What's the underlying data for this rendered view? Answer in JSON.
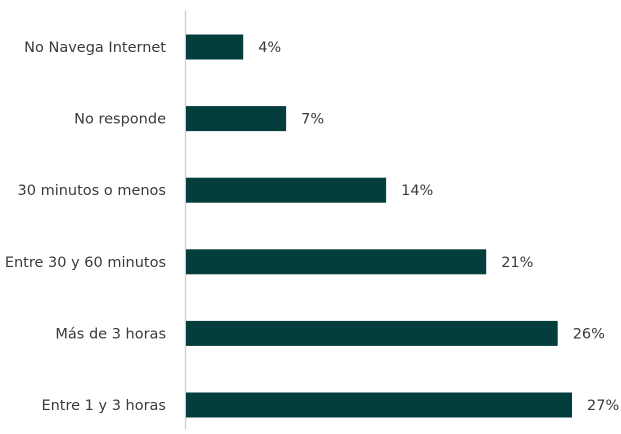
{
  "colors": {
    "bar": "#033e3c",
    "axis": "#cfcfcf",
    "text": "#3a3a3a",
    "background": "#ffffff"
  },
  "chart_data": {
    "type": "bar",
    "orientation": "horizontal",
    "title": "",
    "xlabel": "",
    "ylabel": "",
    "categories": [
      "No Navega Internet",
      "No responde",
      "30 minutos o menos",
      "Entre 30 y 60 minutos",
      "Más de 3 horas",
      "Entre 1 y 3 horas"
    ],
    "values": [
      4,
      7,
      14,
      21,
      26,
      27
    ],
    "value_labels": [
      "4%",
      "7%",
      "14%",
      "21%",
      "26%",
      "27%"
    ],
    "xlim": [
      0,
      27
    ],
    "grid": false,
    "legend": "none"
  }
}
